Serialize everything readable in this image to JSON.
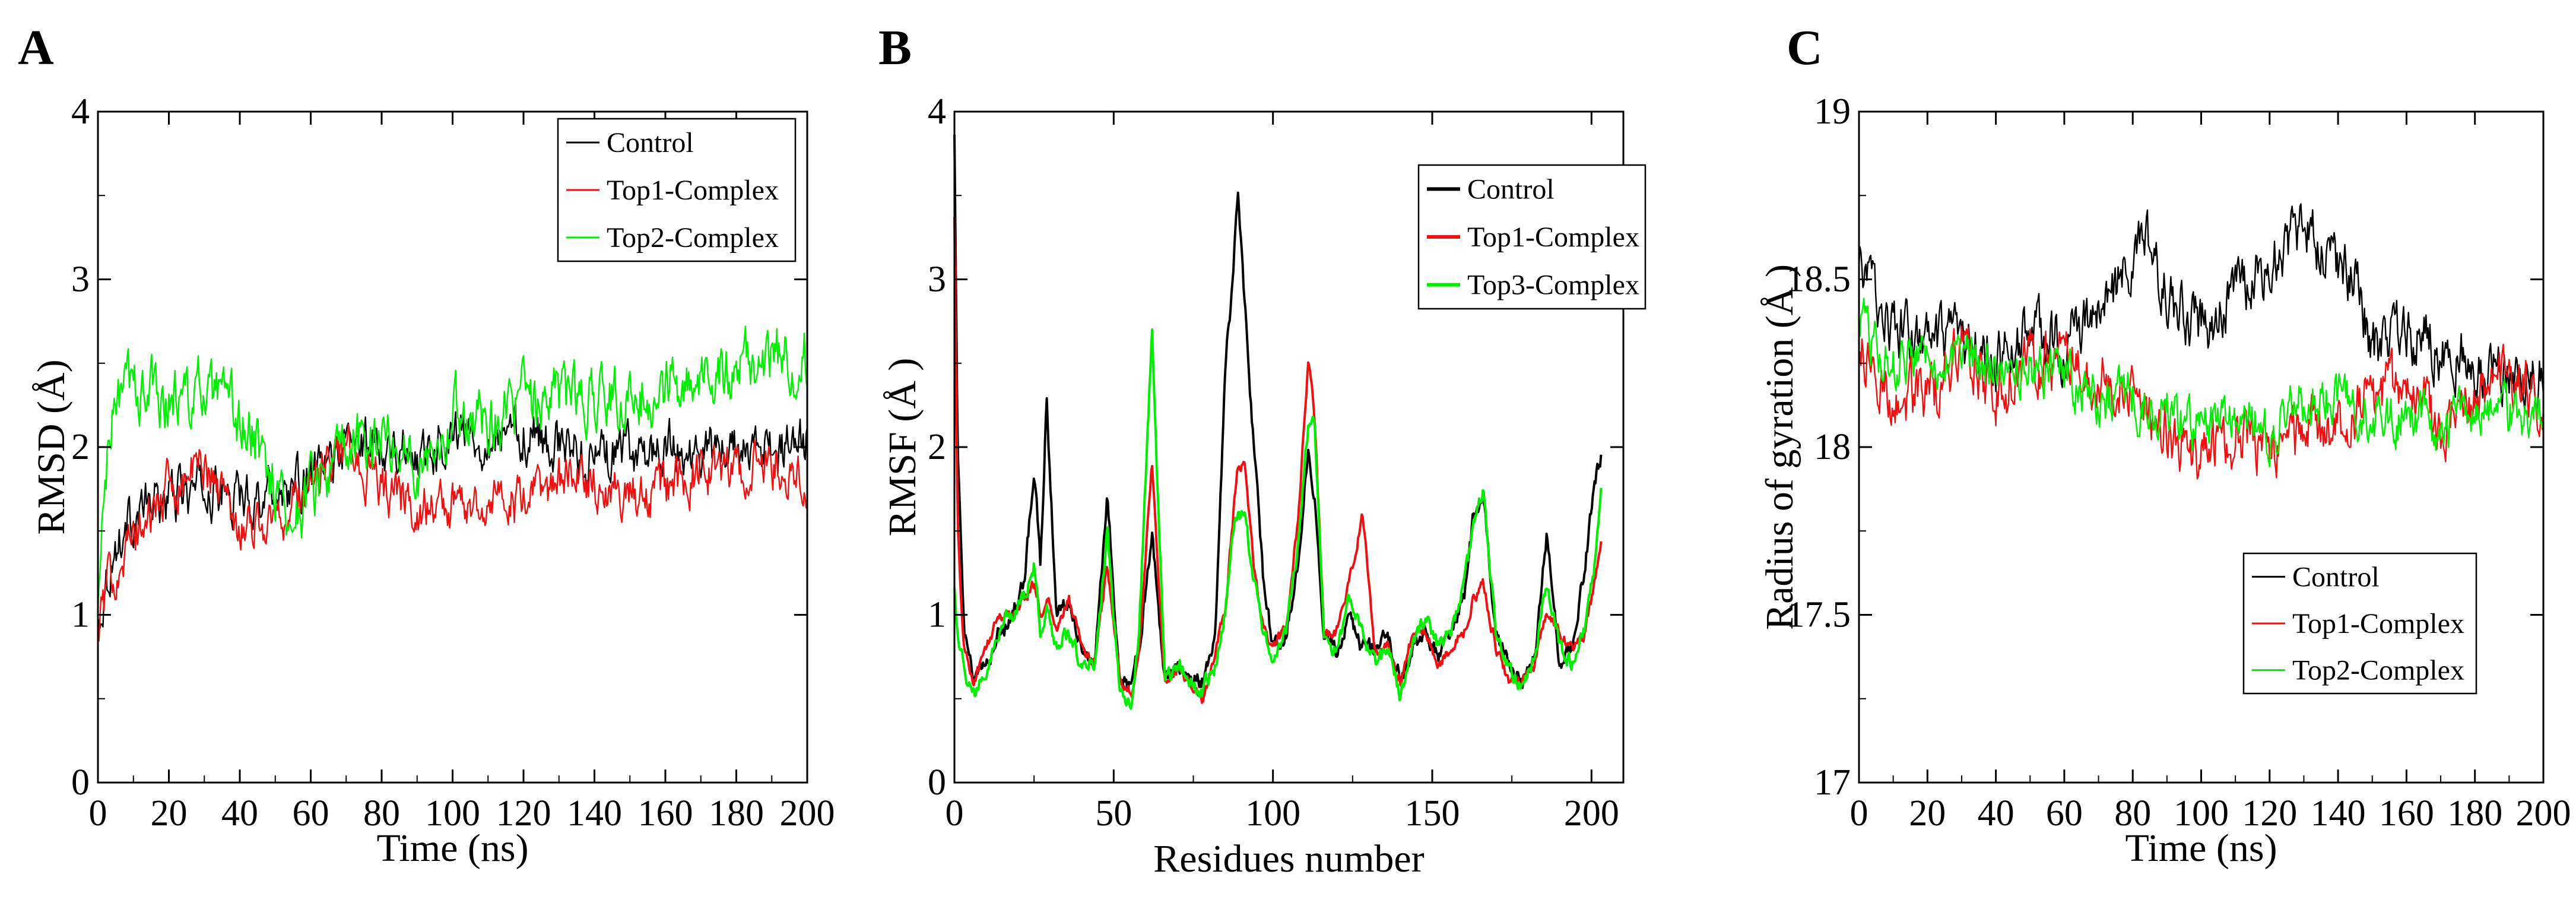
{
  "colors": {
    "control": "#000000",
    "top1": "#ee1111",
    "top2": "#00ee00"
  },
  "chart_data": [
    {
      "panel": "A",
      "type": "line",
      "title": "",
      "xlabel": "Time (ns)",
      "ylabel": "RMSD (Å)",
      "xlim": [
        0,
        200
      ],
      "ylim": [
        0,
        4
      ],
      "xticks": [
        "0",
        "20",
        "40",
        "60",
        "80",
        "100",
        "120",
        "140",
        "160",
        "180",
        "200"
      ],
      "yticks": [
        "0",
        "1",
        "2",
        "3",
        "4"
      ],
      "grid": false,
      "legend_position": "top-right",
      "series": [
        {
          "name": "Control",
          "color": "#000000",
          "noise": 0.12,
          "x": [
            0,
            2,
            5,
            10,
            20,
            30,
            40,
            50,
            55,
            60,
            70,
            80,
            90,
            100,
            110,
            120,
            130,
            140,
            150,
            160,
            170,
            180,
            190,
            200
          ],
          "values": [
            0.9,
            1.2,
            1.4,
            1.6,
            1.7,
            1.75,
            1.7,
            1.75,
            1.75,
            1.8,
            2.0,
            2.05,
            1.95,
            2.1,
            2.05,
            2.1,
            2.0,
            1.95,
            1.95,
            2.0,
            1.95,
            2.0,
            1.95,
            2.05
          ]
        },
        {
          "name": "Top1-Complex",
          "color": "#ee1111",
          "noise": 0.12,
          "x": [
            0,
            2,
            5,
            10,
            20,
            30,
            40,
            50,
            55,
            60,
            70,
            80,
            90,
            100,
            110,
            120,
            130,
            140,
            150,
            160,
            170,
            180,
            190,
            200
          ],
          "values": [
            0.9,
            1.1,
            1.3,
            1.45,
            1.75,
            1.9,
            1.55,
            1.55,
            1.65,
            1.8,
            2.0,
            1.75,
            1.65,
            1.65,
            1.7,
            1.65,
            1.8,
            1.8,
            1.7,
            1.75,
            1.85,
            1.85,
            1.9,
            1.85
          ]
        },
        {
          "name": "Top2-Complex",
          "color": "#00ee00",
          "noise": 0.15,
          "x": [
            0,
            2,
            5,
            10,
            20,
            30,
            40,
            50,
            55,
            60,
            70,
            80,
            90,
            100,
            110,
            120,
            130,
            140,
            150,
            160,
            170,
            180,
            190,
            200
          ],
          "values": [
            1.0,
            1.8,
            2.3,
            2.35,
            2.3,
            2.3,
            2.15,
            1.8,
            1.55,
            1.75,
            1.95,
            2.1,
            1.9,
            2.2,
            2.2,
            2.25,
            2.3,
            2.3,
            2.3,
            2.35,
            2.4,
            2.45,
            2.55,
            2.55
          ]
        }
      ]
    },
    {
      "panel": "B",
      "type": "line",
      "title": "",
      "xlabel": "Residues number",
      "ylabel": "RMSF (Å )",
      "xlim": [
        0,
        210
      ],
      "ylim": [
        0,
        4
      ],
      "xticks": [
        "0",
        "50",
        "100",
        "150",
        "200"
      ],
      "yticks": [
        "0",
        "1",
        "2",
        "3",
        "4"
      ],
      "grid": false,
      "legend_position": "top-right",
      "series": [
        {
          "name": "Control",
          "color": "#000000",
          "noise": 0.04,
          "x": [
            0,
            1,
            3,
            6,
            10,
            14,
            18,
            22,
            25,
            27,
            29,
            32,
            36,
            40,
            44,
            48,
            52,
            56,
            58,
            62,
            66,
            70,
            74,
            78,
            82,
            85,
            87,
            89,
            91,
            94,
            97,
            100,
            104,
            108,
            111,
            113,
            116,
            120,
            124,
            128,
            132,
            136,
            140,
            144,
            148,
            152,
            156,
            160,
            163,
            166,
            170,
            174,
            178,
            182,
            186,
            190,
            194,
            198,
            201,
            203
          ],
          "values": [
            3.9,
            2.0,
            0.9,
            0.6,
            0.7,
            0.9,
            1.0,
            1.2,
            1.9,
            1.3,
            2.3,
            1.0,
            1.1,
            0.8,
            0.7,
            1.7,
            0.6,
            0.6,
            0.8,
            1.5,
            0.6,
            0.7,
            0.65,
            0.6,
            0.9,
            2.5,
            2.9,
            3.55,
            2.9,
            2.0,
            1.2,
            0.8,
            0.9,
            1.3,
            2.0,
            1.7,
            0.9,
            0.8,
            1.0,
            0.8,
            0.8,
            0.9,
            0.6,
            0.8,
            0.9,
            0.75,
            0.9,
            1.1,
            1.6,
            1.7,
            0.9,
            0.7,
            0.6,
            0.7,
            1.5,
            0.7,
            0.8,
            1.3,
            1.8,
            1.95
          ]
        },
        {
          "name": "Top1-Complex",
          "color": "#ee1111",
          "noise": 0.03,
          "x": [
            0,
            1,
            3,
            6,
            10,
            14,
            18,
            22,
            25,
            27,
            29,
            32,
            36,
            40,
            44,
            48,
            52,
            56,
            58,
            62,
            66,
            70,
            74,
            78,
            82,
            85,
            87,
            89,
            91,
            94,
            97,
            100,
            104,
            108,
            111,
            113,
            116,
            120,
            124,
            128,
            132,
            136,
            140,
            144,
            148,
            152,
            156,
            160,
            163,
            166,
            170,
            174,
            178,
            182,
            186,
            190,
            194,
            198,
            201,
            203
          ],
          "values": [
            3.4,
            1.5,
            0.8,
            0.6,
            0.8,
            1.0,
            1.0,
            1.1,
            1.2,
            1.0,
            1.1,
            0.9,
            1.1,
            0.8,
            0.7,
            1.3,
            0.6,
            0.55,
            0.8,
            1.9,
            0.6,
            0.7,
            0.6,
            0.5,
            0.8,
            1.0,
            1.5,
            1.9,
            1.9,
            1.3,
            0.9,
            0.8,
            0.9,
            1.6,
            2.5,
            2.2,
            0.9,
            0.9,
            1.2,
            1.6,
            0.8,
            0.8,
            0.6,
            0.9,
            0.9,
            0.7,
            0.8,
            0.9,
            1.1,
            1.2,
            0.8,
            0.6,
            0.6,
            0.7,
            1.0,
            0.9,
            0.8,
            0.9,
            1.2,
            1.45
          ]
        },
        {
          "name": "Top3-Complex",
          "color": "#00ee00",
          "noise": 0.04,
          "x": [
            0,
            1,
            3,
            6,
            10,
            14,
            18,
            22,
            25,
            27,
            29,
            32,
            36,
            40,
            44,
            48,
            52,
            56,
            58,
            62,
            66,
            70,
            74,
            78,
            82,
            85,
            87,
            89,
            91,
            94,
            97,
            100,
            104,
            108,
            111,
            113,
            116,
            120,
            124,
            128,
            132,
            136,
            140,
            144,
            148,
            152,
            156,
            160,
            163,
            166,
            170,
            174,
            178,
            182,
            186,
            190,
            194,
            198,
            201,
            203
          ],
          "values": [
            1.2,
            0.9,
            0.7,
            0.5,
            0.7,
            0.9,
            1.0,
            1.1,
            1.3,
            0.9,
            1.0,
            0.8,
            0.9,
            0.7,
            0.7,
            1.5,
            0.5,
            0.5,
            0.9,
            2.7,
            0.6,
            0.7,
            0.6,
            0.55,
            0.7,
            1.0,
            1.4,
            1.6,
            1.6,
            1.2,
            0.9,
            0.75,
            0.9,
            1.4,
            2.1,
            2.2,
            0.85,
            0.8,
            1.1,
            0.9,
            0.7,
            0.8,
            0.5,
            0.8,
            1.0,
            0.8,
            0.9,
            1.2,
            1.5,
            1.75,
            0.9,
            0.7,
            0.55,
            0.7,
            1.2,
            0.8,
            0.7,
            0.9,
            1.3,
            1.8
          ]
        }
      ]
    },
    {
      "panel": "C",
      "type": "line",
      "title": "",
      "xlabel": "Time (ns)",
      "ylabel": "Radius of gyration (Å )",
      "xlim": [
        0,
        200
      ],
      "ylim": [
        17,
        19
      ],
      "xticks": [
        "0",
        "20",
        "40",
        "60",
        "80",
        "100",
        "120",
        "140",
        "160",
        "180",
        "200"
      ],
      "yticks": [
        "17",
        "17.5",
        "18",
        "18.5",
        "19"
      ],
      "grid": false,
      "legend_position": "bottom-right",
      "series": [
        {
          "name": "Control",
          "color": "#000000",
          "noise": 0.07,
          "x": [
            0,
            5,
            10,
            20,
            30,
            40,
            50,
            60,
            70,
            80,
            85,
            90,
            100,
            110,
            120,
            125,
            130,
            140,
            145,
            150,
            160,
            170,
            180,
            190,
            200
          ],
          "values": [
            18.55,
            18.45,
            18.35,
            18.3,
            18.3,
            18.25,
            18.35,
            18.3,
            18.4,
            18.55,
            18.6,
            18.45,
            18.35,
            18.45,
            18.55,
            18.6,
            18.65,
            18.55,
            18.5,
            18.3,
            18.35,
            18.3,
            18.25,
            18.2,
            18.25
          ]
        },
        {
          "name": "Top1-Complex",
          "color": "#ee1111",
          "noise": 0.07,
          "x": [
            0,
            5,
            10,
            20,
            30,
            40,
            50,
            60,
            70,
            80,
            90,
            100,
            110,
            120,
            130,
            140,
            150,
            160,
            170,
            180,
            190,
            200
          ],
          "values": [
            18.3,
            18.2,
            18.15,
            18.15,
            18.3,
            18.15,
            18.25,
            18.25,
            18.2,
            18.15,
            18.05,
            17.95,
            18.05,
            18.0,
            18.05,
            18.05,
            18.15,
            18.2,
            18.05,
            18.15,
            18.2,
            18.1
          ]
        },
        {
          "name": "Top2-Complex",
          "color": "#00ee00",
          "noise": 0.06,
          "x": [
            0,
            5,
            10,
            20,
            30,
            40,
            50,
            60,
            70,
            80,
            90,
            100,
            110,
            120,
            130,
            140,
            150,
            160,
            170,
            180,
            190,
            200
          ],
          "values": [
            18.4,
            18.3,
            18.25,
            18.3,
            18.25,
            18.25,
            18.25,
            18.2,
            18.15,
            18.15,
            18.1,
            18.05,
            18.1,
            18.05,
            18.15,
            18.15,
            18.1,
            18.1,
            18.05,
            18.1,
            18.1,
            18.1
          ]
        }
      ]
    }
  ]
}
